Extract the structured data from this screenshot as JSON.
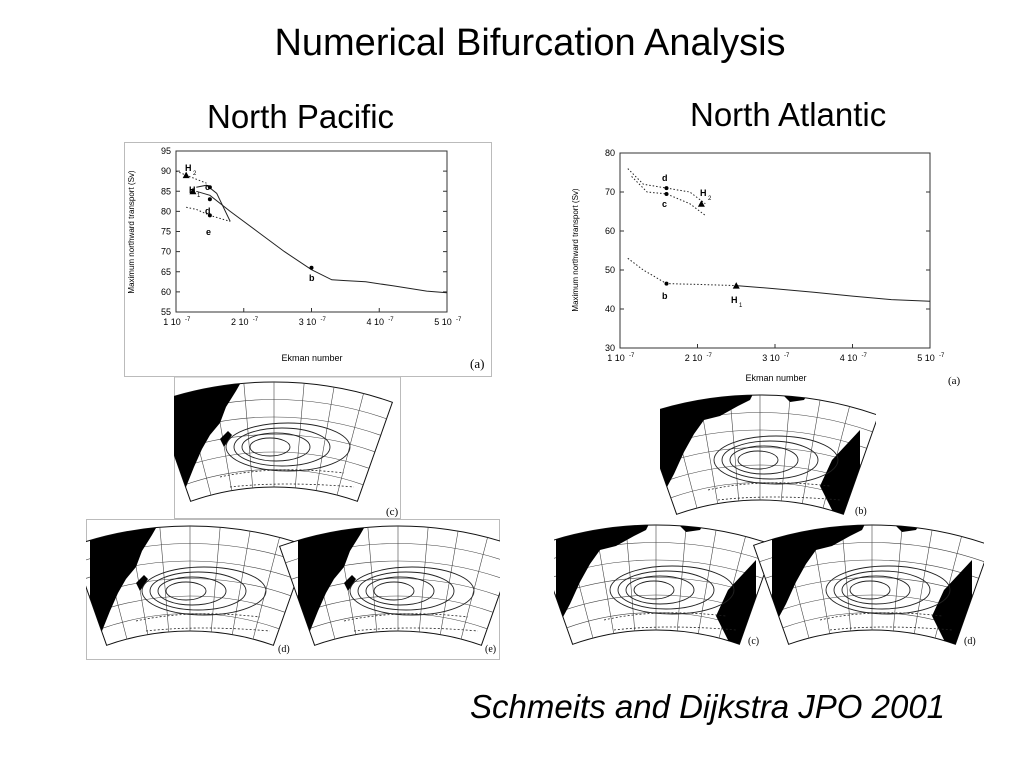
{
  "slide": {
    "title": "Numerical Bifurcation Analysis",
    "left_heading": "North Pacific",
    "right_heading": "North Atlantic",
    "citation": "Schmeits and Dijkstra JPO 2001"
  },
  "pacific_chart": {
    "ylabel": "Maximum northward transport (Sv)",
    "xlabel": "Ekman number",
    "panel_label": "(a)",
    "y_ticks": [
      "95",
      "90",
      "85",
      "80",
      "75",
      "70",
      "65",
      "60",
      "55"
    ],
    "x_ticks": [
      "1 10",
      "2 10",
      "3 10",
      "4 10",
      "5 10"
    ],
    "exp": "-7",
    "points": {
      "H2": "H",
      "H2sub": "2",
      "H1": "H",
      "H1sub": "1",
      "c": "c",
      "d": "d",
      "e": "e",
      "b": "b"
    }
  },
  "atlantic_chart": {
    "ylabel": "Maximum northward transport (Sv)",
    "xlabel": "Ekman number",
    "panel_label": "(a)",
    "y_ticks": [
      "80",
      "70",
      "60",
      "50",
      "40",
      "30"
    ],
    "x_ticks": [
      "1 10",
      "2 10",
      "3 10",
      "4 10",
      "5 10"
    ],
    "exp": "-7",
    "points": {
      "d": "d",
      "c": "c",
      "H2": "H",
      "H2sub": "2",
      "b": "b",
      "H1": "H",
      "H1sub": "1"
    }
  },
  "map_labels": {
    "pac_c": "(c)",
    "pac_d": "(d)",
    "pac_e": "(e)",
    "atl_b": "(b)",
    "atl_c": "(c)",
    "atl_d": "(d)"
  },
  "chart_data": [
    {
      "type": "line",
      "xlabel": "Ekman number",
      "ylabel": "Maximum northward transport (Sv)",
      "xlim": [
        1e-07,
        5e-07
      ],
      "ylim": [
        55,
        95
      ],
      "series": [
        {
          "style": "solid",
          "x": [
            1.3e-07,
            1.5e-07,
            1.8e-07,
            2.2e-07,
            2.6e-07,
            3e-07,
            3.3e-07,
            3.5e-07,
            3.8e-07,
            4.2e-07,
            4.7e-07,
            5e-07
          ],
          "y": [
            85,
            84,
            80,
            75,
            70,
            65.5,
            63,
            62.8,
            62.5,
            61.5,
            60.2,
            59.8
          ]
        },
        {
          "style": "solid",
          "x": [
            1.3e-07,
            1.45e-07,
            1.6e-07,
            1.8e-07
          ],
          "y": [
            86,
            86.5,
            84.5,
            77.5
          ]
        },
        {
          "style": "dotted",
          "x": [
            1e-07,
            1.15e-07,
            1.3e-07,
            1.45e-07
          ],
          "y": [
            90,
            89,
            88,
            87
          ]
        },
        {
          "style": "dotted",
          "x": [
            1.15e-07,
            1.3e-07,
            1.5e-07,
            1.8e-07
          ],
          "y": [
            81,
            80.5,
            79,
            77.5
          ]
        }
      ],
      "labeled_points": [
        {
          "label": "H2",
          "x": 1.15e-07,
          "y": 89
        },
        {
          "label": "H1",
          "x": 1.25e-07,
          "y": 85
        },
        {
          "label": "c",
          "x": 1.5e-07,
          "y": 86
        },
        {
          "label": "d",
          "x": 1.5e-07,
          "y": 83
        },
        {
          "label": "e",
          "x": 1.5e-07,
          "y": 79
        },
        {
          "label": "b",
          "x": 3e-07,
          "y": 66
        }
      ]
    },
    {
      "type": "line",
      "xlabel": "Ekman number",
      "ylabel": "Maximum northward transport (Sv)",
      "xlim": [
        1e-07,
        5e-07
      ],
      "ylim": [
        30,
        80
      ],
      "series": [
        {
          "style": "solid",
          "x": [
            2.5e-07,
            3e-07,
            3.5e-07,
            4e-07,
            4.5e-07,
            5e-07
          ],
          "y": [
            46,
            45.2,
            44.3,
            43.3,
            42.4,
            42
          ]
        },
        {
          "style": "dotted",
          "x": [
            1.1e-07,
            1.3e-07,
            1.6e-07,
            2e-07,
            2.5e-07
          ],
          "y": [
            53,
            50,
            46.5,
            46.3,
            46
          ]
        },
        {
          "style": "dotted",
          "x": [
            1.1e-07,
            1.3e-07,
            1.6e-07,
            1.9e-07,
            2.1e-07
          ],
          "y": [
            76,
            72,
            71,
            70,
            67
          ]
        },
        {
          "style": "dotted",
          "x": [
            1.15e-07,
            1.35e-07,
            1.6e-07,
            1.9e-07,
            2.1e-07
          ],
          "y": [
            74,
            70,
            69.5,
            67,
            64
          ]
        }
      ],
      "labeled_points": [
        {
          "label": "d",
          "x": 1.6e-07,
          "y": 71
        },
        {
          "label": "c",
          "x": 1.6e-07,
          "y": 69.5
        },
        {
          "label": "H2",
          "x": 2.05e-07,
          "y": 67
        },
        {
          "label": "b",
          "x": 1.6e-07,
          "y": 46.5
        },
        {
          "label": "H1",
          "x": 2.5e-07,
          "y": 46
        }
      ]
    }
  ]
}
